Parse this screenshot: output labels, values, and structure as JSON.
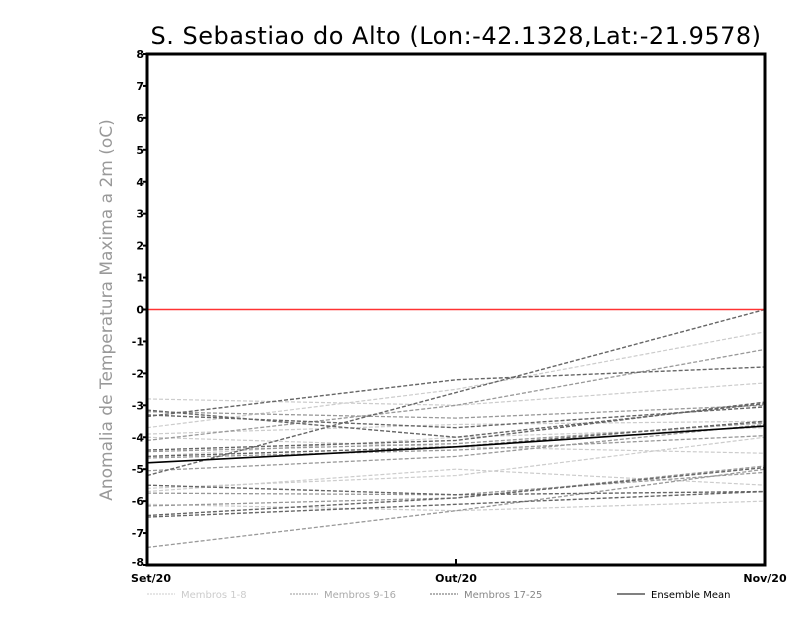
{
  "chart_data": {
    "type": "line",
    "title": "S. Sebastiao do Alto (Lon:-42.1328,Lat:-21.9578)",
    "xlabel": "",
    "ylabel": "Anomalia de Temperatura Maxima a 2m (oC)",
    "categories": [
      "Set/20",
      "Out/20",
      "Nov/20"
    ],
    "ylim": [
      -8,
      8
    ],
    "yticks": [
      "-8",
      "-7",
      "-6",
      "-5",
      "-4",
      "-3",
      "-2",
      "-1",
      "0",
      "1",
      "2",
      "3",
      "4",
      "5",
      "6",
      "7",
      "8"
    ],
    "reference_line": {
      "value": 0,
      "color": "#ff3333"
    },
    "legend": [
      "Membros 1-8",
      "Membros 9-16",
      "Membros 17-25",
      "Ensemble Mean"
    ],
    "legend_placement": "bottom",
    "group_colors": [
      "#cccccc",
      "#999999",
      "#666666",
      "#000000"
    ],
    "series": [
      {
        "name": "Membro 1",
        "group": 0,
        "values": [
          -2.8,
          -3.0,
          -2.3
        ]
      },
      {
        "name": "Membro 2",
        "group": 0,
        "values": [
          -3.7,
          -2.5,
          -0.7
        ]
      },
      {
        "name": "Membro 3",
        "group": 0,
        "values": [
          -3.9,
          -3.6,
          -3.5
        ]
      },
      {
        "name": "Membro 4",
        "group": 0,
        "values": [
          -4.6,
          -4.0,
          -3.7
        ]
      },
      {
        "name": "Membro 5",
        "group": 0,
        "values": [
          -5.6,
          -5.2,
          -4.0
        ]
      },
      {
        "name": "Membro 6",
        "group": 0,
        "values": [
          -5.7,
          -5.0,
          -5.5
        ]
      },
      {
        "name": "Membro 7",
        "group": 0,
        "values": [
          -4.0,
          -4.3,
          -4.5
        ]
      },
      {
        "name": "Membro 8",
        "group": 0,
        "values": [
          -6.1,
          -6.3,
          -6.0
        ]
      },
      {
        "name": "Membro 9",
        "group": 1,
        "values": [
          -3.2,
          -3.4,
          -3.0
        ]
      },
      {
        "name": "Membro 10",
        "group": 1,
        "values": [
          -4.1,
          -3.0,
          -1.25
        ]
      },
      {
        "name": "Membro 11",
        "group": 1,
        "values": [
          -4.45,
          -4.2,
          -3.55
        ]
      },
      {
        "name": "Membro 12",
        "group": 1,
        "values": [
          -5.05,
          -4.6,
          -3.6
        ]
      },
      {
        "name": "Membro 13",
        "group": 1,
        "values": [
          -5.75,
          -5.8,
          -5.1
        ]
      },
      {
        "name": "Membro 14",
        "group": 1,
        "values": [
          -6.15,
          -5.9,
          -4.9
        ]
      },
      {
        "name": "Membro 15",
        "group": 1,
        "values": [
          -4.65,
          -4.4,
          -3.95
        ]
      },
      {
        "name": "Membro 16",
        "group": 1,
        "values": [
          -7.45,
          -6.3,
          -5.0
        ]
      },
      {
        "name": "Membro 17",
        "group": 2,
        "values": [
          -3.35,
          -2.2,
          -1.8
        ]
      },
      {
        "name": "Membro 18",
        "group": 2,
        "values": [
          -5.2,
          -2.6,
          0.0
        ]
      },
      {
        "name": "Membro 19",
        "group": 2,
        "values": [
          -3.15,
          -4.0,
          -2.95
        ]
      },
      {
        "name": "Membro 20",
        "group": 2,
        "values": [
          -4.4,
          -4.1,
          -2.9
        ]
      },
      {
        "name": "Membro 21",
        "group": 2,
        "values": [
          -5.5,
          -5.8,
          -5.7
        ]
      },
      {
        "name": "Membro 22",
        "group": 2,
        "values": [
          -6.45,
          -5.9,
          -4.95
        ]
      },
      {
        "name": "Membro 23",
        "group": 2,
        "values": [
          -6.5,
          -6.1,
          -5.7
        ]
      },
      {
        "name": "Membro 24",
        "group": 2,
        "values": [
          -4.6,
          -4.3,
          -3.5
        ]
      },
      {
        "name": "Membro 25",
        "group": 2,
        "values": [
          -3.3,
          -3.7,
          -3.05
        ]
      },
      {
        "name": "Ensemble Mean",
        "group": 3,
        "values": [
          -4.8,
          -4.3,
          -3.65
        ]
      }
    ]
  }
}
